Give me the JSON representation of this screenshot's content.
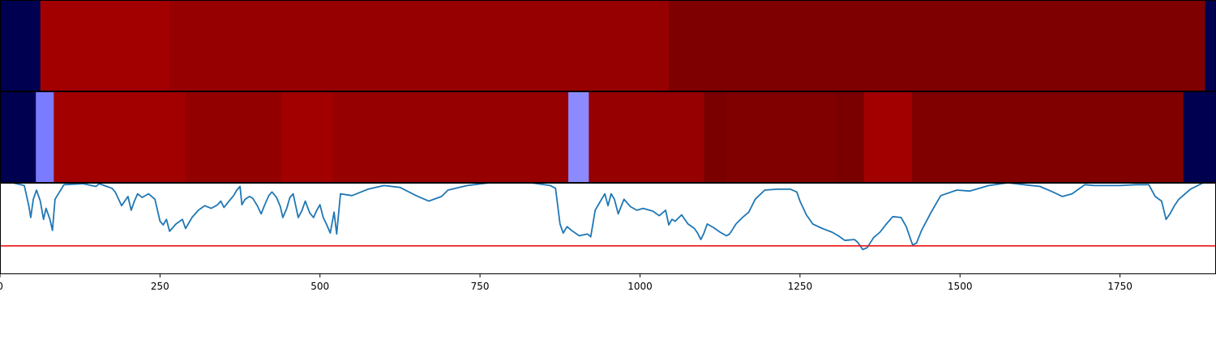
{
  "chart_data": [
    {
      "type": "heatmap",
      "title": "",
      "colormap": "seismic",
      "xlim": [
        0,
        1900
      ],
      "segments": [
        {
          "x0": 0,
          "x1": 63,
          "color": "#000050"
        },
        {
          "x0": 63,
          "x1": 265,
          "color": "#a20000"
        },
        {
          "x0": 265,
          "x1": 1045,
          "color": "#970000"
        },
        {
          "x0": 1045,
          "x1": 1883,
          "color": "#7f0000"
        },
        {
          "x0": 1883,
          "x1": 1900,
          "color": "#000050"
        }
      ]
    },
    {
      "type": "heatmap",
      "title": "",
      "colormap": "seismic",
      "xlim": [
        0,
        1900
      ],
      "segments": [
        {
          "x0": 0,
          "x1": 56,
          "color": "#000050"
        },
        {
          "x0": 56,
          "x1": 84,
          "color": "#7b7bff"
        },
        {
          "x0": 84,
          "x1": 290,
          "color": "#a20000"
        },
        {
          "x0": 290,
          "x1": 440,
          "color": "#930000"
        },
        {
          "x0": 440,
          "x1": 520,
          "color": "#a20000"
        },
        {
          "x0": 520,
          "x1": 888,
          "color": "#970000"
        },
        {
          "x0": 888,
          "x1": 920,
          "color": "#8b8bff"
        },
        {
          "x0": 920,
          "x1": 1100,
          "color": "#970000"
        },
        {
          "x0": 1100,
          "x1": 1135,
          "color": "#7a0000"
        },
        {
          "x0": 1135,
          "x1": 1305,
          "color": "#800000"
        },
        {
          "x0": 1305,
          "x1": 1350,
          "color": "#7a0000"
        },
        {
          "x0": 1350,
          "x1": 1425,
          "color": "#a20000"
        },
        {
          "x0": 1425,
          "x1": 1849,
          "color": "#800000"
        },
        {
          "x0": 1849,
          "x1": 1900,
          "color": "#000050"
        }
      ]
    },
    {
      "type": "line",
      "title": "",
      "xlabel": "",
      "ylabel": "",
      "xlim": [
        0,
        1900
      ],
      "ylim": [
        0,
        1
      ],
      "x_ticks": [
        0,
        250,
        500,
        750,
        1000,
        1250,
        1500,
        1750
      ],
      "x_tick_labels": [
        "0",
        "250",
        "500",
        "750",
        "1000",
        "1250",
        "1500",
        "1750"
      ],
      "threshold": {
        "y": 0.31,
        "color": "#ee1111"
      },
      "series": [
        {
          "color": "#1f77b4",
          "points": [
            [
              0,
              1.0
            ],
            [
              20,
              1.0
            ],
            [
              38,
              0.97
            ],
            [
              45,
              0.75
            ],
            [
              48,
              0.62
            ],
            [
              52,
              0.82
            ],
            [
              57,
              0.92
            ],
            [
              63,
              0.8
            ],
            [
              68,
              0.6
            ],
            [
              72,
              0.72
            ],
            [
              78,
              0.6
            ],
            [
              82,
              0.48
            ],
            [
              86,
              0.82
            ],
            [
              100,
              0.98
            ],
            [
              130,
              0.99
            ],
            [
              150,
              0.96
            ],
            [
              155,
              0.99
            ],
            [
              175,
              0.94
            ],
            [
              180,
              0.9
            ],
            [
              190,
              0.75
            ],
            [
              200,
              0.85
            ],
            [
              205,
              0.7
            ],
            [
              210,
              0.8
            ],
            [
              215,
              0.88
            ],
            [
              222,
              0.84
            ],
            [
              232,
              0.88
            ],
            [
              242,
              0.82
            ],
            [
              250,
              0.58
            ],
            [
              255,
              0.54
            ],
            [
              260,
              0.6
            ],
            [
              265,
              0.47
            ],
            [
              275,
              0.55
            ],
            [
              285,
              0.6
            ],
            [
              290,
              0.5
            ],
            [
              300,
              0.62
            ],
            [
              310,
              0.7
            ],
            [
              320,
              0.75
            ],
            [
              330,
              0.72
            ],
            [
              340,
              0.76
            ],
            [
              345,
              0.8
            ],
            [
              350,
              0.73
            ],
            [
              358,
              0.8
            ],
            [
              365,
              0.86
            ],
            [
              370,
              0.92
            ],
            [
              375,
              0.96
            ],
            [
              378,
              0.76
            ],
            [
              383,
              0.82
            ],
            [
              390,
              0.85
            ],
            [
              395,
              0.83
            ],
            [
              402,
              0.75
            ],
            [
              408,
              0.66
            ],
            [
              413,
              0.75
            ],
            [
              420,
              0.86
            ],
            [
              425,
              0.9
            ],
            [
              432,
              0.84
            ],
            [
              438,
              0.74
            ],
            [
              442,
              0.62
            ],
            [
              448,
              0.72
            ],
            [
              453,
              0.84
            ],
            [
              458,
              0.88
            ],
            [
              466,
              0.62
            ],
            [
              472,
              0.7
            ],
            [
              477,
              0.8
            ],
            [
              484,
              0.67
            ],
            [
              490,
              0.62
            ],
            [
              495,
              0.7
            ],
            [
              500,
              0.76
            ],
            [
              505,
              0.62
            ],
            [
              510,
              0.55
            ],
            [
              516,
              0.45
            ],
            [
              522,
              0.68
            ],
            [
              526,
              0.44
            ],
            [
              532,
              0.88
            ],
            [
              550,
              0.86
            ],
            [
              575,
              0.93
            ],
            [
              600,
              0.97
            ],
            [
              625,
              0.95
            ],
            [
              650,
              0.86
            ],
            [
              670,
              0.8
            ],
            [
              690,
              0.85
            ],
            [
              700,
              0.92
            ],
            [
              730,
              0.97
            ],
            [
              765,
              1.0
            ],
            [
              800,
              1.0
            ],
            [
              830,
              1.0
            ],
            [
              860,
              0.97
            ],
            [
              868,
              0.94
            ],
            [
              875,
              0.55
            ],
            [
              880,
              0.45
            ],
            [
              886,
              0.52
            ],
            [
              893,
              0.48
            ],
            [
              905,
              0.42
            ],
            [
              918,
              0.44
            ],
            [
              923,
              0.41
            ],
            [
              930,
              0.7
            ],
            [
              940,
              0.82
            ],
            [
              945,
              0.88
            ],
            [
              950,
              0.75
            ],
            [
              955,
              0.88
            ],
            [
              960,
              0.82
            ],
            [
              966,
              0.66
            ],
            [
              975,
              0.82
            ],
            [
              985,
              0.74
            ],
            [
              995,
              0.7
            ],
            [
              1005,
              0.72
            ],
            [
              1020,
              0.69
            ],
            [
              1030,
              0.64
            ],
            [
              1040,
              0.7
            ],
            [
              1045,
              0.54
            ],
            [
              1050,
              0.6
            ],
            [
              1055,
              0.58
            ],
            [
              1065,
              0.65
            ],
            [
              1075,
              0.55
            ],
            [
              1085,
              0.5
            ],
            [
              1090,
              0.45
            ],
            [
              1095,
              0.38
            ],
            [
              1100,
              0.45
            ],
            [
              1105,
              0.55
            ],
            [
              1115,
              0.51
            ],
            [
              1125,
              0.46
            ],
            [
              1135,
              0.42
            ],
            [
              1140,
              0.44
            ],
            [
              1150,
              0.55
            ],
            [
              1160,
              0.62
            ],
            [
              1170,
              0.68
            ],
            [
              1180,
              0.82
            ],
            [
              1195,
              0.92
            ],
            [
              1215,
              0.93
            ],
            [
              1235,
              0.93
            ],
            [
              1245,
              0.9
            ],
            [
              1250,
              0.8
            ],
            [
              1260,
              0.65
            ],
            [
              1270,
              0.55
            ],
            [
              1285,
              0.5
            ],
            [
              1300,
              0.46
            ],
            [
              1310,
              0.42
            ],
            [
              1320,
              0.37
            ],
            [
              1335,
              0.38
            ],
            [
              1340,
              0.35
            ],
            [
              1348,
              0.27
            ],
            [
              1355,
              0.29
            ],
            [
              1365,
              0.4
            ],
            [
              1375,
              0.46
            ],
            [
              1385,
              0.55
            ],
            [
              1395,
              0.63
            ],
            [
              1408,
              0.62
            ],
            [
              1416,
              0.52
            ],
            [
              1422,
              0.4
            ],
            [
              1426,
              0.32
            ],
            [
              1432,
              0.34
            ],
            [
              1440,
              0.48
            ],
            [
              1455,
              0.68
            ],
            [
              1470,
              0.86
            ],
            [
              1495,
              0.92
            ],
            [
              1515,
              0.91
            ],
            [
              1545,
              0.97
            ],
            [
              1575,
              1.0
            ],
            [
              1600,
              0.98
            ],
            [
              1625,
              0.96
            ],
            [
              1645,
              0.9
            ],
            [
              1660,
              0.85
            ],
            [
              1675,
              0.88
            ],
            [
              1695,
              0.98
            ],
            [
              1710,
              0.97
            ],
            [
              1750,
              0.97
            ],
            [
              1775,
              0.98
            ],
            [
              1795,
              0.98
            ],
            [
              1805,
              0.85
            ],
            [
              1815,
              0.8
            ],
            [
              1822,
              0.6
            ],
            [
              1828,
              0.66
            ],
            [
              1835,
              0.75
            ],
            [
              1842,
              0.82
            ],
            [
              1860,
              0.93
            ],
            [
              1880,
              1.0
            ],
            [
              1900,
              1.0
            ]
          ]
        }
      ]
    }
  ]
}
